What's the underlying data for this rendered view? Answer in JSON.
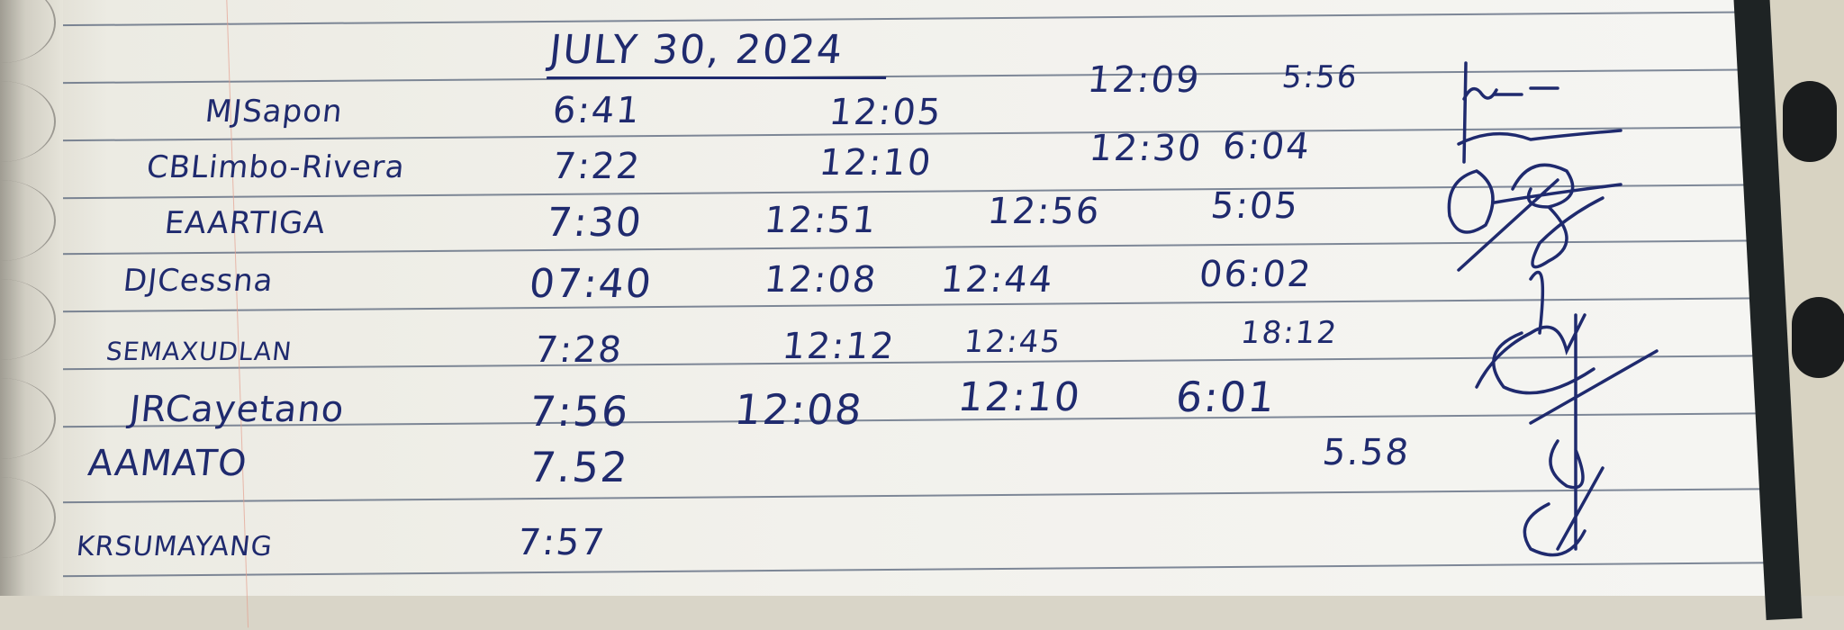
{
  "log": {
    "date": "JULY 30, 2024",
    "rows": [
      {
        "name": "MJSapon",
        "times": [
          "6:41",
          "12:05",
          "12:09",
          "5:56"
        ]
      },
      {
        "name": "CBLimbo-Rivera",
        "times": [
          "7:22",
          "12:10",
          "12:30",
          "6:04"
        ]
      },
      {
        "name": "EAARTIGA",
        "times": [
          "7:30",
          "12:51",
          "12:56",
          "5:05"
        ]
      },
      {
        "name": "DJCessna",
        "times": [
          "07:40",
          "12:08",
          "12:44",
          "06:02"
        ]
      },
      {
        "name": "SEMAXUDLAN",
        "times": [
          "7:28",
          "12:12",
          "12:45",
          "18:12"
        ]
      },
      {
        "name": "JRCayetano",
        "times": [
          "7:56",
          "12:08",
          "12:10",
          "6:01"
        ]
      },
      {
        "name": "AAMATO",
        "times": [
          "7.52",
          "",
          "",
          "5.58"
        ]
      },
      {
        "name": "KRSUMAYANG",
        "times": [
          "7:57",
          "",
          "",
          ""
        ]
      }
    ]
  },
  "colors": {
    "ink": "#1f2a6e",
    "paper": "#f3f2ee",
    "rule": "#56637a"
  }
}
